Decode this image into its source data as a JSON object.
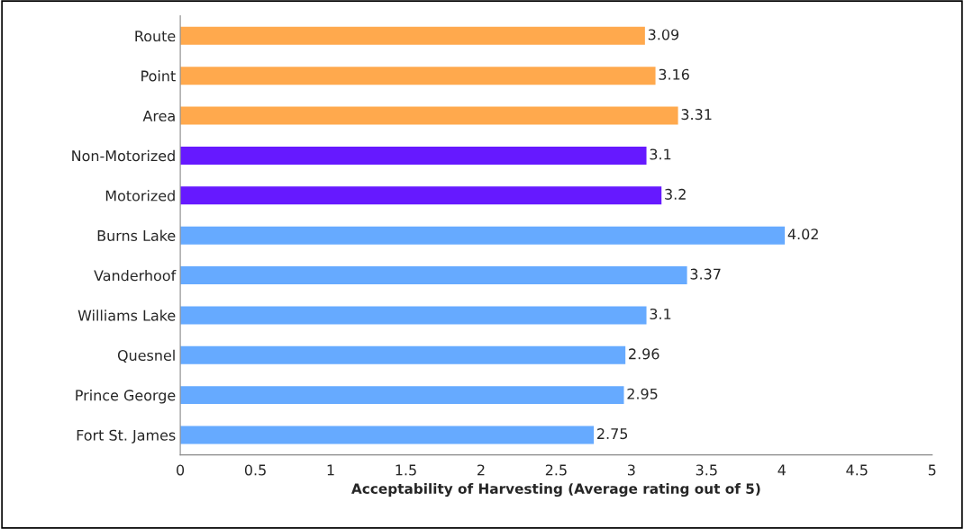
{
  "chart_data": {
    "type": "bar",
    "orientation": "horizontal",
    "xlabel": "Acceptability of Harvesting (Average rating out of 5)",
    "categories": [
      "Route",
      "Point",
      "Area",
      "Non-Motorized",
      "Motorized",
      "Burns Lake",
      "Vanderhoof",
      "Williams Lake",
      "Quesnel",
      "Prince George",
      "Fort St. James"
    ],
    "values": [
      3.09,
      3.16,
      3.31,
      3.1,
      3.2,
      4.02,
      3.37,
      3.1,
      2.96,
      2.95,
      2.75
    ],
    "colors": [
      "#ffa94d",
      "#ffa94d",
      "#ffa94d",
      "#6619ff",
      "#6619ff",
      "#66aaff",
      "#66aaff",
      "#66aaff",
      "#66aaff",
      "#66aaff",
      "#66aaff"
    ],
    "xlim": [
      0,
      5
    ],
    "xticks": [
      0,
      0.5,
      1,
      1.5,
      2,
      2.5,
      3,
      3.5,
      4,
      4.5,
      5
    ],
    "data_labels": true,
    "grid": false,
    "legend": false
  }
}
